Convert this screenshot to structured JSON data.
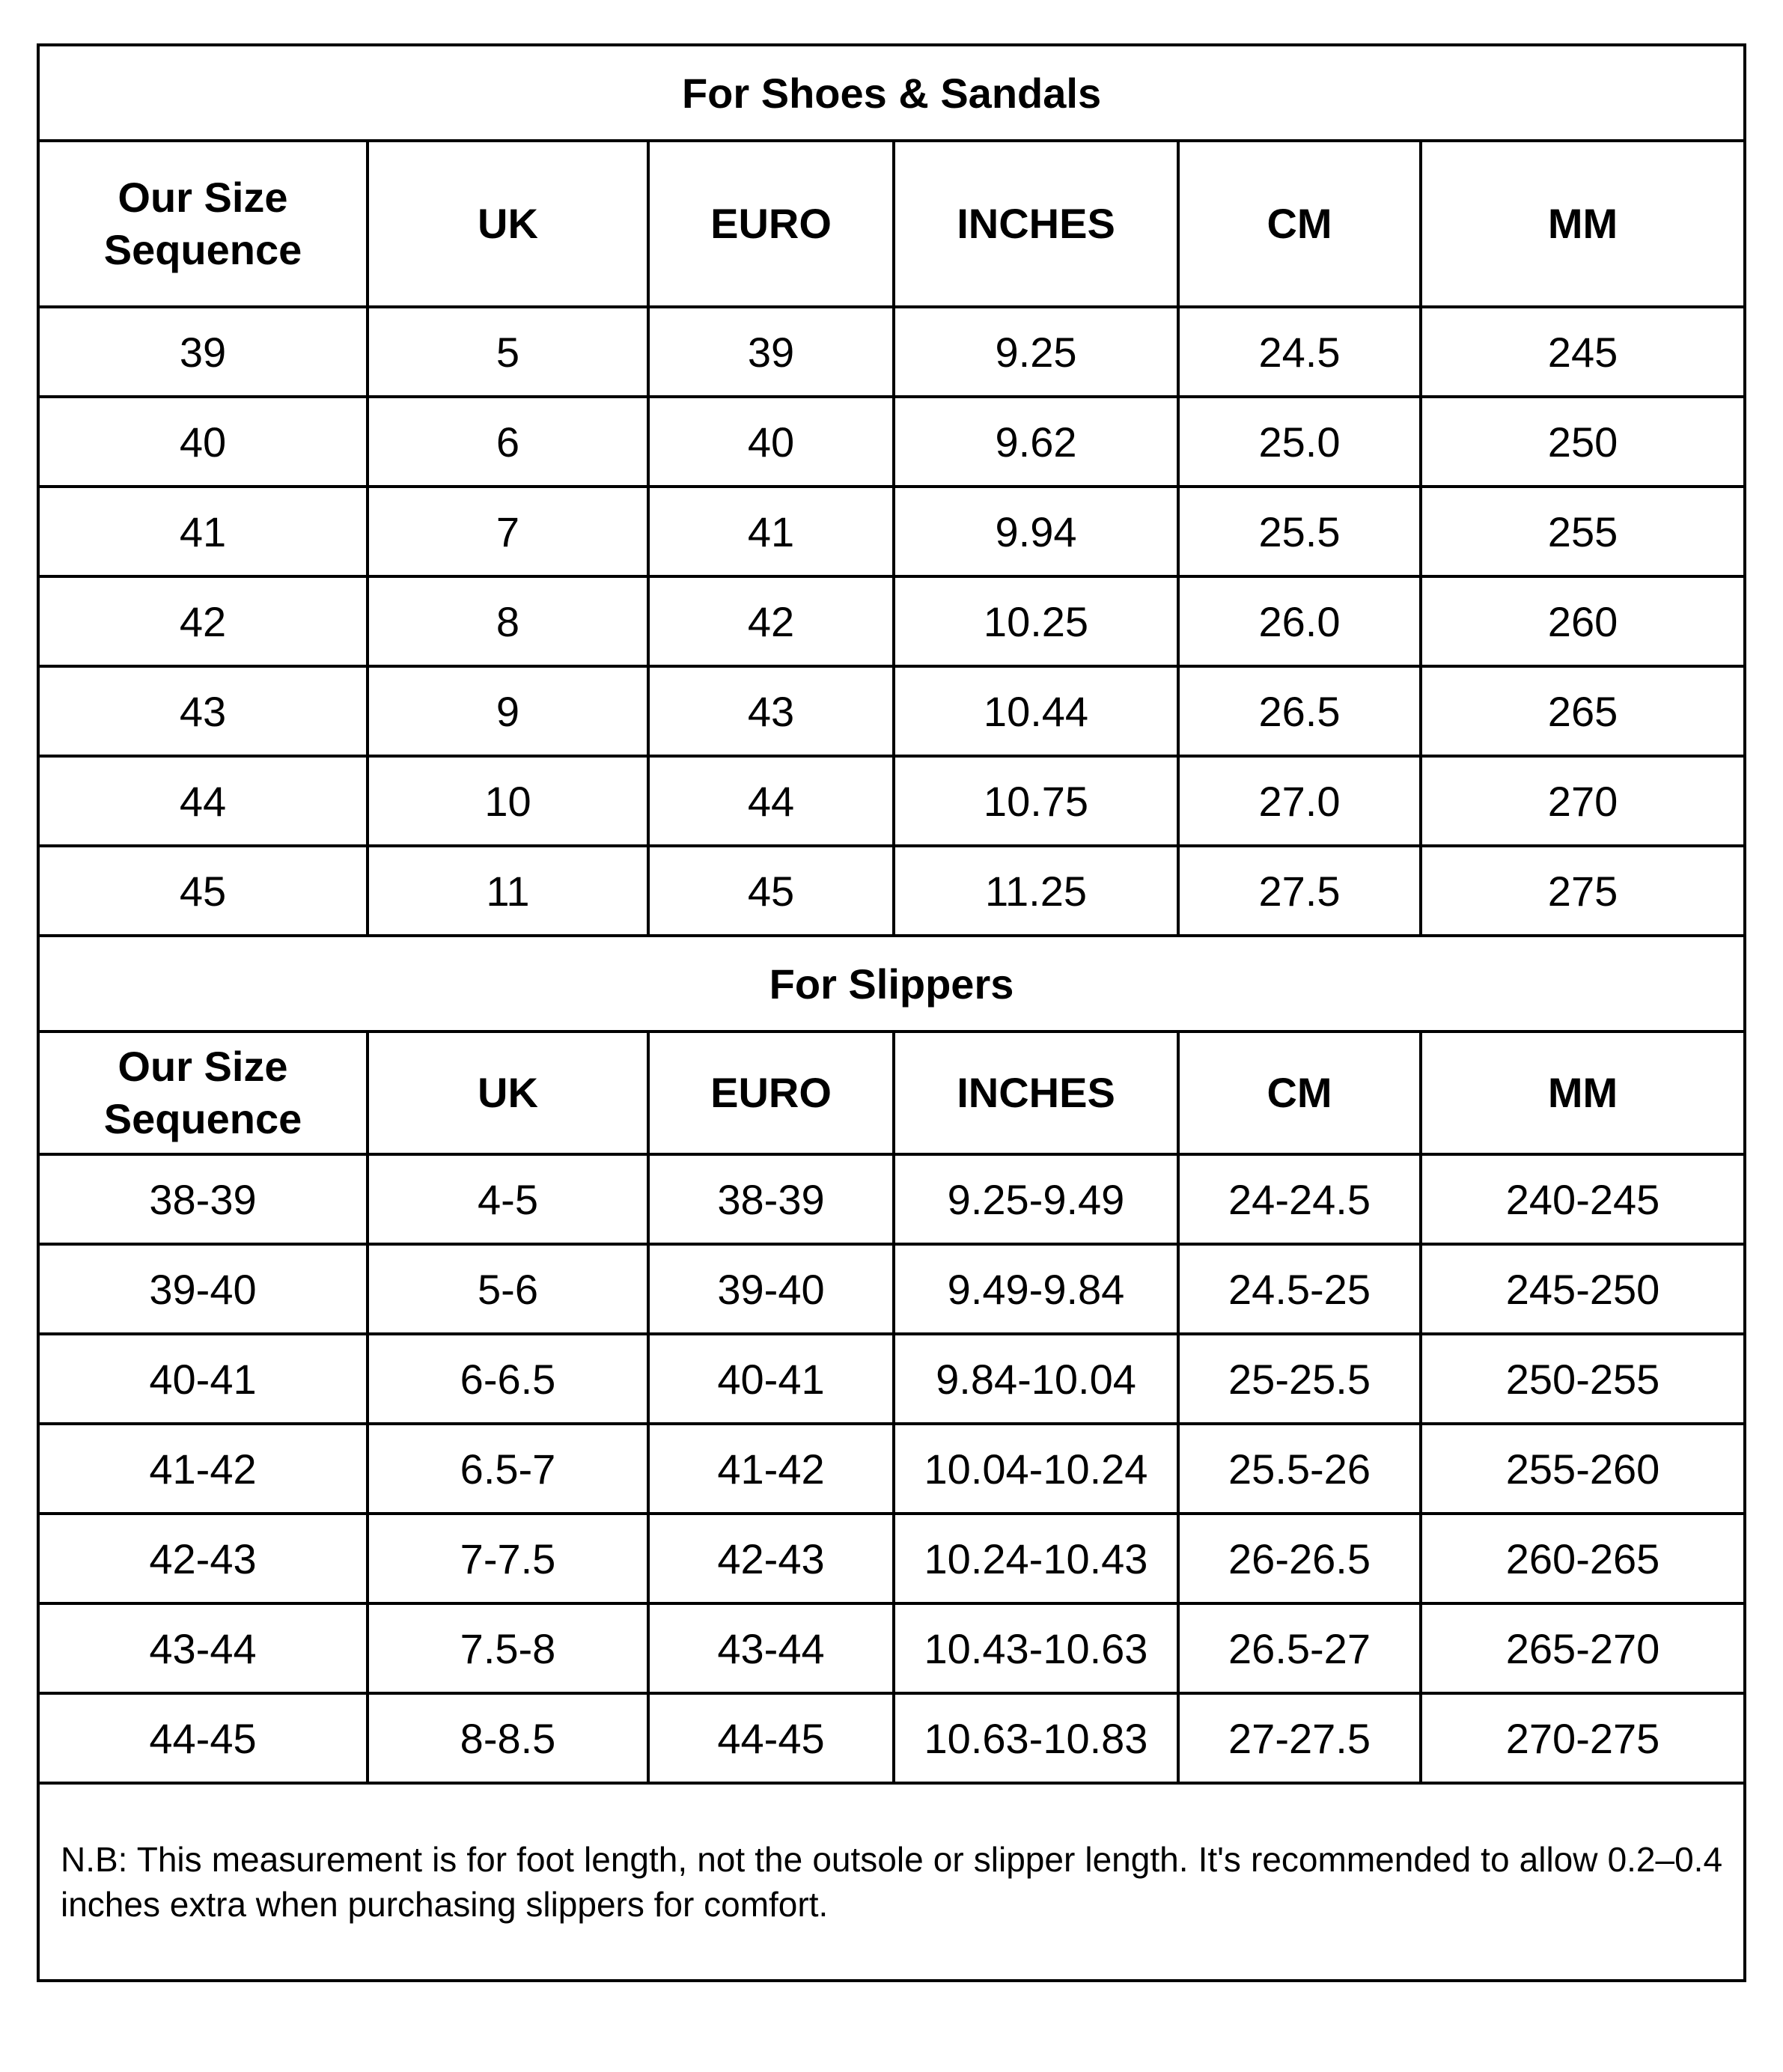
{
  "shoes": {
    "title": "For Shoes & Sandals",
    "headers": [
      "Our Size Sequence",
      "UK",
      "EURO",
      "INCHES",
      "CM",
      "MM"
    ],
    "rows": [
      [
        "39",
        "5",
        "39",
        "9.25",
        "24.5",
        "245"
      ],
      [
        "40",
        "6",
        "40",
        "9.62",
        "25.0",
        "250"
      ],
      [
        "41",
        "7",
        "41",
        "9.94",
        "25.5",
        "255"
      ],
      [
        "42",
        "8",
        "42",
        "10.25",
        "26.0",
        "260"
      ],
      [
        "43",
        "9",
        "43",
        "10.44",
        "26.5",
        "265"
      ],
      [
        "44",
        "10",
        "44",
        "10.75",
        "27.0",
        "270"
      ],
      [
        "45",
        "11",
        "45",
        "11.25",
        "27.5",
        "275"
      ]
    ]
  },
  "slippers": {
    "title": "For Slippers",
    "headers": [
      "Our Size Sequence",
      "UK",
      "EURO",
      "INCHES",
      "CM",
      "MM"
    ],
    "rows": [
      [
        "38-39",
        "4-5",
        "38-39",
        "9.25-9.49",
        "24-24.5",
        "240-245"
      ],
      [
        "39-40",
        "5-6",
        "39-40",
        "9.49-9.84",
        "24.5-25",
        "245-250"
      ],
      [
        "40-41",
        "6-6.5",
        "40-41",
        "9.84-10.04",
        "25-25.5",
        "250-255"
      ],
      [
        "41-42",
        "6.5-7",
        "41-42",
        "10.04-10.24",
        "25.5-26",
        "255-260"
      ],
      [
        "42-43",
        "7-7.5",
        "42-43",
        "10.24-10.43",
        "26-26.5",
        "260-265"
      ],
      [
        "43-44",
        "7.5-8",
        "43-44",
        "10.43-10.63",
        "26.5-27",
        "265-270"
      ],
      [
        "44-45",
        "8-8.5",
        "44-45",
        "10.63-10.83",
        "27-27.5",
        "270-275"
      ]
    ]
  },
  "note": "N.B: This measurement is for foot length, not the outsole or slipper length. It's recommended to allow 0.2–0.4 inches extra when purchasing slippers for comfort."
}
